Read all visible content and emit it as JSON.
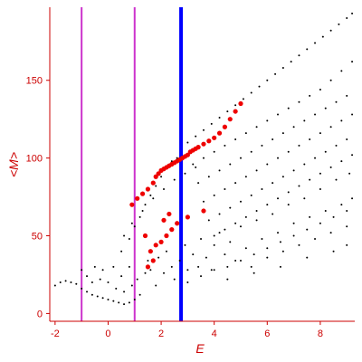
{
  "chart_data": {
    "type": "scatter",
    "xlabel": "E",
    "ylabel": "<M>",
    "xlim": [
      -2.2,
      9.3
    ],
    "ylim": [
      -5,
      197
    ],
    "xticks": [
      -2,
      0,
      2,
      4,
      6,
      8
    ],
    "yticks": [
      0,
      50,
      100,
      150
    ],
    "vlines": [
      {
        "x": -1.0,
        "color": "#cc33cc"
      },
      {
        "x": 1.0,
        "color": "#cc33cc"
      },
      {
        "x": 2.75,
        "color": "#0000ff"
      }
    ],
    "colors": {
      "axis": "#cc0000",
      "background_points": "#000000",
      "highlight_points": "#ee0000"
    },
    "series": [
      {
        "color": "#000000",
        "marker": "dot",
        "points": [
          [
            -2.0,
            18
          ],
          [
            -1.8,
            20
          ],
          [
            -1.6,
            21
          ],
          [
            -1.4,
            20
          ],
          [
            -1.2,
            19
          ],
          [
            -1.0,
            16
          ],
          [
            -0.8,
            14
          ],
          [
            -0.6,
            12
          ],
          [
            -0.4,
            11
          ],
          [
            -0.2,
            10
          ],
          [
            0.0,
            9
          ],
          [
            0.2,
            8
          ],
          [
            0.4,
            7
          ],
          [
            0.6,
            6
          ],
          [
            0.8,
            7
          ],
          [
            1.0,
            9
          ],
          [
            -1.0,
            28
          ],
          [
            -0.8,
            24
          ],
          [
            -0.6,
            20
          ],
          [
            -0.5,
            30
          ],
          [
            -0.3,
            22
          ],
          [
            -0.2,
            28
          ],
          [
            0.0,
            20
          ],
          [
            0.2,
            30
          ],
          [
            0.3,
            16
          ],
          [
            0.5,
            24
          ],
          [
            0.6,
            14
          ],
          [
            0.8,
            30
          ],
          [
            0.9,
            18
          ],
          [
            1.1,
            22
          ],
          [
            1.2,
            12
          ],
          [
            1.4,
            26
          ],
          [
            1.5,
            34
          ],
          [
            1.6,
            28
          ],
          [
            1.8,
            18
          ],
          [
            1.9,
            36
          ],
          [
            2.1,
            26
          ],
          [
            2.2,
            40
          ],
          [
            2.4,
            30
          ],
          [
            2.5,
            22
          ],
          [
            2.7,
            34
          ],
          [
            2.9,
            44
          ],
          [
            3.0,
            28
          ],
          [
            3.2,
            38
          ],
          [
            3.4,
            30
          ],
          [
            3.5,
            48
          ],
          [
            3.7,
            36
          ],
          [
            3.9,
            28
          ],
          [
            4.0,
            44
          ],
          [
            4.2,
            52
          ],
          [
            4.4,
            38
          ],
          [
            4.6,
            46
          ],
          [
            4.8,
            34
          ],
          [
            5.0,
            56
          ],
          [
            5.2,
            42
          ],
          [
            5.4,
            30
          ],
          [
            5.6,
            60
          ],
          [
            5.8,
            48
          ],
          [
            6.0,
            36
          ],
          [
            6.2,
            64
          ],
          [
            6.4,
            52
          ],
          [
            6.6,
            40
          ],
          [
            6.8,
            70
          ],
          [
            7.0,
            58
          ],
          [
            7.2,
            44
          ],
          [
            7.4,
            74
          ],
          [
            7.6,
            62
          ],
          [
            7.8,
            48
          ],
          [
            8.0,
            80
          ],
          [
            8.2,
            66
          ],
          [
            8.4,
            52
          ],
          [
            8.6,
            86
          ],
          [
            8.8,
            70
          ],
          [
            9.0,
            56
          ],
          [
            9.1,
            90
          ],
          [
            9.2,
            74
          ],
          [
            4.5,
            30
          ],
          [
            5.0,
            34
          ],
          [
            5.5,
            38
          ],
          [
            6.0,
            42
          ],
          [
            6.5,
            46
          ],
          [
            7.0,
            50
          ],
          [
            7.5,
            54
          ],
          [
            8.0,
            58
          ],
          [
            8.5,
            62
          ],
          [
            9.0,
            66
          ],
          [
            3.0,
            20
          ],
          [
            3.5,
            24
          ],
          [
            4.0,
            28
          ],
          [
            4.5,
            22
          ],
          [
            5.5,
            26
          ],
          [
            6.5,
            30
          ],
          [
            7.5,
            36
          ],
          [
            8.5,
            40
          ],
          [
            9.0,
            44
          ],
          [
            0.5,
            40
          ],
          [
            0.8,
            48
          ],
          [
            1.0,
            56
          ],
          [
            1.2,
            62
          ],
          [
            1.4,
            70
          ],
          [
            1.6,
            76
          ],
          [
            1.8,
            82
          ],
          [
            2.0,
            88
          ],
          [
            2.2,
            94
          ],
          [
            2.4,
            98
          ],
          [
            2.6,
            100
          ],
          [
            0.6,
            50
          ],
          [
            0.9,
            58
          ],
          [
            1.3,
            66
          ],
          [
            1.7,
            74
          ],
          [
            2.1,
            80
          ],
          [
            2.5,
            86
          ],
          [
            2.9,
            90
          ],
          [
            3.3,
            94
          ],
          [
            3.0,
            110
          ],
          [
            3.3,
            114
          ],
          [
            3.6,
            118
          ],
          [
            3.9,
            122
          ],
          [
            4.2,
            126
          ],
          [
            4.5,
            130
          ],
          [
            4.8,
            134
          ],
          [
            5.1,
            138
          ],
          [
            5.4,
            142
          ],
          [
            5.7,
            146
          ],
          [
            6.0,
            150
          ],
          [
            6.3,
            154
          ],
          [
            6.6,
            158
          ],
          [
            6.9,
            162
          ],
          [
            7.2,
            166
          ],
          [
            7.5,
            170
          ],
          [
            7.8,
            174
          ],
          [
            8.1,
            178
          ],
          [
            8.4,
            182
          ],
          [
            8.7,
            186
          ],
          [
            9.0,
            190
          ],
          [
            9.2,
            193
          ],
          [
            3.2,
            96
          ],
          [
            3.6,
            100
          ],
          [
            4.0,
            104
          ],
          [
            4.4,
            108
          ],
          [
            4.8,
            112
          ],
          [
            5.2,
            116
          ],
          [
            5.6,
            120
          ],
          [
            6.0,
            124
          ],
          [
            6.4,
            128
          ],
          [
            6.8,
            132
          ],
          [
            7.2,
            136
          ],
          [
            7.6,
            140
          ],
          [
            8.0,
            144
          ],
          [
            8.4,
            150
          ],
          [
            8.8,
            156
          ],
          [
            9.2,
            162
          ],
          [
            3.4,
            84
          ],
          [
            3.8,
            88
          ],
          [
            4.2,
            92
          ],
          [
            4.6,
            96
          ],
          [
            5.0,
            100
          ],
          [
            5.4,
            104
          ],
          [
            5.8,
            108
          ],
          [
            6.2,
            112
          ],
          [
            6.6,
            116
          ],
          [
            7.0,
            120
          ],
          [
            7.4,
            124
          ],
          [
            7.8,
            128
          ],
          [
            8.2,
            132
          ],
          [
            8.6,
            136
          ],
          [
            9.0,
            140
          ],
          [
            3.6,
            72
          ],
          [
            4.0,
            76
          ],
          [
            4.4,
            80
          ],
          [
            4.8,
            84
          ],
          [
            5.2,
            88
          ],
          [
            5.6,
            92
          ],
          [
            6.0,
            96
          ],
          [
            6.4,
            100
          ],
          [
            6.8,
            104
          ],
          [
            7.2,
            108
          ],
          [
            7.6,
            112
          ],
          [
            8.0,
            116
          ],
          [
            8.4,
            120
          ],
          [
            8.8,
            124
          ],
          [
            9.2,
            128
          ],
          [
            3.8,
            60
          ],
          [
            4.2,
            64
          ],
          [
            4.6,
            68
          ],
          [
            5.0,
            72
          ],
          [
            5.4,
            76
          ],
          [
            5.8,
            80
          ],
          [
            6.2,
            84
          ],
          [
            6.6,
            88
          ],
          [
            7.0,
            92
          ],
          [
            7.4,
            96
          ],
          [
            7.8,
            100
          ],
          [
            8.2,
            104
          ],
          [
            8.6,
            108
          ],
          [
            9.0,
            112
          ],
          [
            4.0,
            50
          ],
          [
            4.4,
            54
          ],
          [
            4.8,
            58
          ],
          [
            5.2,
            62
          ],
          [
            5.6,
            66
          ],
          [
            6.0,
            70
          ],
          [
            6.4,
            74
          ],
          [
            6.8,
            78
          ],
          [
            7.2,
            82
          ],
          [
            7.6,
            86
          ],
          [
            8.0,
            90
          ],
          [
            8.4,
            94
          ],
          [
            8.8,
            98
          ],
          [
            9.2,
            102
          ]
        ]
      },
      {
        "color": "#ee0000",
        "marker": "dot-large",
        "points": [
          [
            0.9,
            70
          ],
          [
            1.1,
            74
          ],
          [
            1.3,
            77
          ],
          [
            1.5,
            80
          ],
          [
            1.7,
            84
          ],
          [
            1.8,
            88
          ],
          [
            1.9,
            90
          ],
          [
            2.0,
            92
          ],
          [
            2.1,
            93
          ],
          [
            2.2,
            94
          ],
          [
            2.3,
            95
          ],
          [
            2.4,
            96
          ],
          [
            2.5,
            97
          ],
          [
            2.6,
            98
          ],
          [
            2.7,
            99
          ],
          [
            2.8,
            100
          ],
          [
            2.9,
            101
          ],
          [
            3.0,
            102
          ],
          [
            3.1,
            104
          ],
          [
            3.2,
            105
          ],
          [
            3.3,
            106
          ],
          [
            3.4,
            107
          ],
          [
            3.6,
            109
          ],
          [
            3.8,
            111
          ],
          [
            4.0,
            113
          ],
          [
            4.2,
            116
          ],
          [
            4.4,
            120
          ],
          [
            4.6,
            125
          ],
          [
            4.8,
            130
          ],
          [
            5.0,
            135
          ],
          [
            1.6,
            40
          ],
          [
            1.8,
            44
          ],
          [
            2.0,
            46
          ],
          [
            2.2,
            50
          ],
          [
            2.4,
            54
          ],
          [
            2.6,
            58
          ],
          [
            3.0,
            62
          ],
          [
            3.6,
            66
          ],
          [
            1.4,
            50
          ],
          [
            2.1,
            60
          ],
          [
            2.3,
            64
          ],
          [
            1.5,
            30
          ],
          [
            1.7,
            34
          ]
        ]
      }
    ]
  }
}
